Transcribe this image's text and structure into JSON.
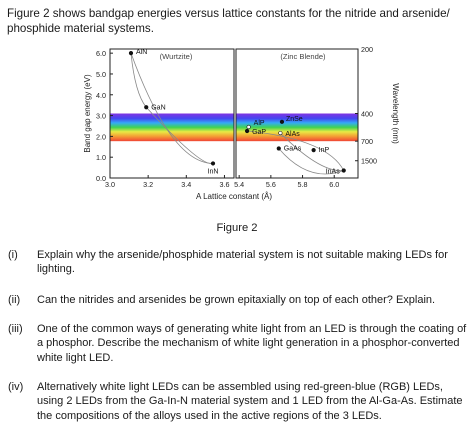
{
  "intro": "Figure 2 shows bandgap energies versus lattice constants for the nitride and arsenide/ phosphide material systems.",
  "caption": "Figure 2",
  "questions": [
    {
      "num": "(i)",
      "text": "Explain why the arsenide/phosphide material system is not suitable making LEDs for lighting."
    },
    {
      "num": "(ii)",
      "text": "Can the nitrides and arsenides be grown epitaxially on top of each other? Explain."
    },
    {
      "num": "(iii)",
      "text": "One of the common ways of generating white light from an LED is through the coating of a phosphor. Describe the mechanism of white light generation in a phosphor-converted white light LED."
    },
    {
      "num": "(iv)",
      "text": "Alternatively white light LEDs can be assembled using red-green-blue (RGB) LEDs, using 2 LEDs from the Ga-In-N material system and 1 LED from the Al-Ga-As. Estimate the compositions of the alloys used in the active regions of the 3 LEDs."
    }
  ],
  "chart_data": {
    "type": "scatter",
    "ylabel": "Band gap energy (eV)",
    "xlabel": "A Lattice constant (Å)",
    "y2label": "Wavelength (nm)",
    "ylim": [
      0,
      6.2
    ],
    "y_ticks": [
      "0.0",
      "1.0",
      "2.0",
      "3.0",
      "4.0",
      "5.0",
      "6.0"
    ],
    "left_panel": {
      "label": "(Wurtzite)",
      "xlim": [
        3.0,
        3.65
      ],
      "x_ticks": [
        "3.0",
        "3.2",
        "3.4",
        "3.6"
      ],
      "points": [
        {
          "name": "AlN",
          "x": 3.11,
          "y": 6.0
        },
        {
          "name": "GaN",
          "x": 3.19,
          "y": 3.4
        },
        {
          "name": "InN",
          "x": 3.54,
          "y": 0.7
        }
      ]
    },
    "right_panel": {
      "label": "(Zinc Blende)",
      "xlim": [
        5.38,
        6.15
      ],
      "x_ticks": [
        "5.4",
        "5.6",
        "5.8",
        "6.0"
      ],
      "points": [
        {
          "name": "AlP",
          "x": 5.46,
          "y": 2.45
        },
        {
          "name": "GaP",
          "x": 5.45,
          "y": 2.26
        },
        {
          "name": "ZnSe",
          "x": 5.67,
          "y": 2.7
        },
        {
          "name": "AlAs",
          "x": 5.66,
          "y": 2.16
        },
        {
          "name": "GaAs",
          "x": 5.65,
          "y": 1.42
        },
        {
          "name": "InP",
          "x": 5.87,
          "y": 1.34
        },
        {
          "name": "InAs",
          "x": 6.06,
          "y": 0.36
        }
      ]
    },
    "wavelength_ticks": [
      {
        "label": "200",
        "ev": 6.2
      },
      {
        "label": "400",
        "ev": 3.1
      },
      {
        "label": "700",
        "ev": 1.77
      },
      {
        "label": "1500",
        "ev": 0.83
      }
    ],
    "visible_band_ev": [
      1.77,
      3.1
    ]
  }
}
